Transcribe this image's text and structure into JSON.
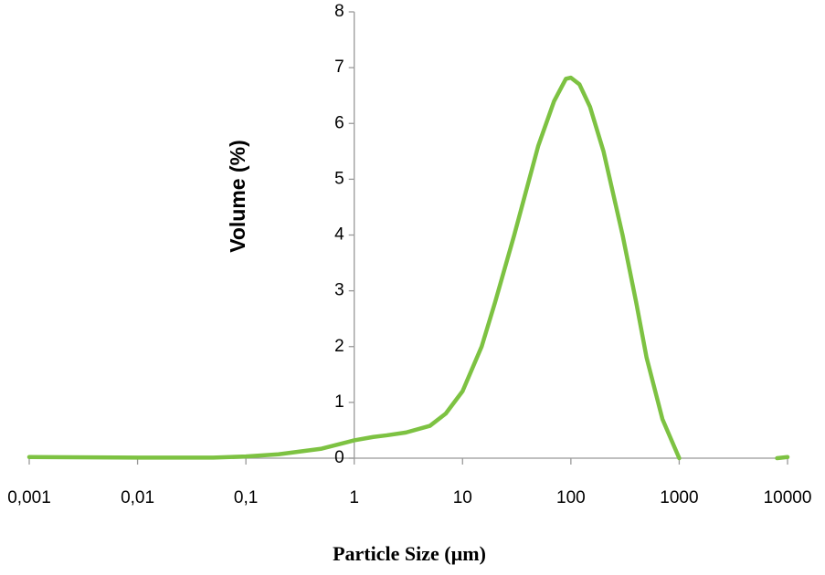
{
  "chart_data": {
    "type": "line",
    "xlabel": "Particle Size (µm)",
    "ylabel": "Volume (%)",
    "xscale": "log",
    "x": [
      0.001,
      0.01,
      0.05,
      0.1,
      0.2,
      0.5,
      1,
      1.5,
      2,
      3,
      5,
      7,
      10,
      15,
      20,
      30,
      50,
      70,
      90,
      100,
      120,
      150,
      200,
      300,
      400,
      500,
      700,
      1000,
      5000,
      8000,
      10000
    ],
    "series": [
      {
        "name": "Volume",
        "color": "#7dc242",
        "values": [
          0.02,
          0.01,
          0.01,
          0.03,
          0.07,
          0.17,
          0.32,
          0.38,
          0.41,
          0.46,
          0.58,
          0.8,
          1.2,
          2.0,
          2.8,
          4.0,
          5.6,
          6.4,
          6.8,
          6.82,
          6.7,
          6.3,
          5.5,
          4.0,
          2.8,
          1.8,
          0.7,
          0.0,
          null,
          0.0,
          0.02
        ]
      }
    ],
    "xlim": [
      0.001,
      10000
    ],
    "xticks": [
      {
        "value": 0.001,
        "label": "0,001"
      },
      {
        "value": 0.01,
        "label": "0,01"
      },
      {
        "value": 0.1,
        "label": "0,1"
      },
      1,
      10,
      100,
      1000,
      10000
    ],
    "ylim": [
      0,
      8
    ],
    "yticks": [
      0,
      1,
      2,
      3,
      4,
      5,
      6,
      7,
      8
    ],
    "yaxis_at": 1
  }
}
